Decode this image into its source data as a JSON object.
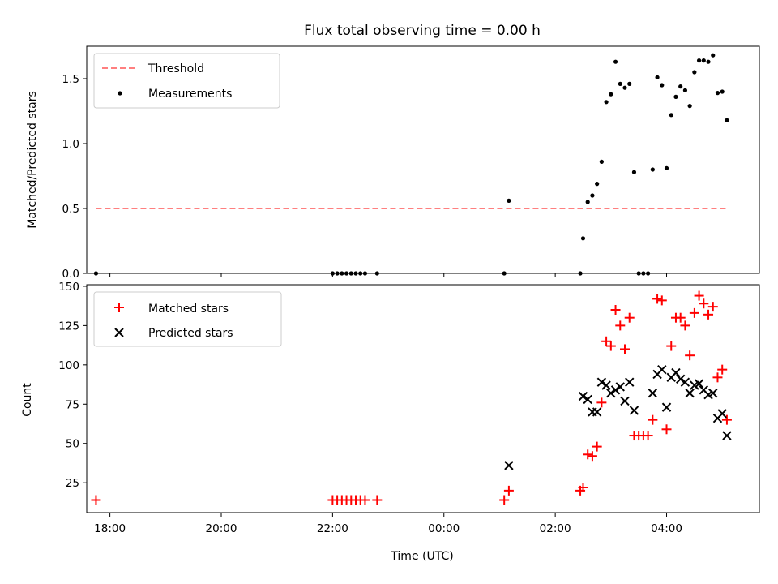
{
  "chart_data": [
    {
      "type": "scatter",
      "title": "Flux total observing time = 0.00 h",
      "xlabel": "",
      "ylabel": "Matched/Predicted stars",
      "xlim": [
        "17:35",
        "05:40"
      ],
      "ylim": [
        0,
        1.75
      ],
      "yticks": [
        0.0,
        0.5,
        1.0,
        1.5
      ],
      "yticklabels": [
        "0.0",
        "0.5",
        "1.0",
        "1.5"
      ],
      "legend": "top-left",
      "series": [
        {
          "name": "Threshold",
          "kind": "dashed-line",
          "color": "#ff7f7f",
          "points": [
            [
              "17:45",
              0.5
            ],
            [
              "05:05",
              0.5
            ]
          ]
        },
        {
          "name": "Measurements",
          "kind": "dots",
          "color": "#000000",
          "points": [
            [
              "17:45",
              0.0
            ],
            [
              "22:00",
              0.0
            ],
            [
              "22:05",
              0.0
            ],
            [
              "22:10",
              0.0
            ],
            [
              "22:15",
              0.0
            ],
            [
              "22:20",
              0.0
            ],
            [
              "22:25",
              0.0
            ],
            [
              "22:30",
              0.0
            ],
            [
              "22:35",
              0.0
            ],
            [
              "22:48",
              0.0
            ],
            [
              "01:05",
              0.0
            ],
            [
              "01:10",
              0.56
            ],
            [
              "02:27",
              0.0
            ],
            [
              "02:30",
              0.27
            ],
            [
              "02:35",
              0.55
            ],
            [
              "02:40",
              0.6
            ],
            [
              "02:45",
              0.69
            ],
            [
              "02:50",
              0.86
            ],
            [
              "02:55",
              1.32
            ],
            [
              "03:00",
              1.38
            ],
            [
              "03:05",
              1.63
            ],
            [
              "03:10",
              1.46
            ],
            [
              "03:15",
              1.43
            ],
            [
              "03:20",
              1.46
            ],
            [
              "03:25",
              0.78
            ],
            [
              "03:30",
              0.0
            ],
            [
              "03:35",
              0.0
            ],
            [
              "03:40",
              0.0
            ],
            [
              "03:45",
              0.8
            ],
            [
              "03:50",
              1.51
            ],
            [
              "03:55",
              1.45
            ],
            [
              "04:00",
              0.81
            ],
            [
              "04:05",
              1.22
            ],
            [
              "04:10",
              1.36
            ],
            [
              "04:15",
              1.44
            ],
            [
              "04:20",
              1.41
            ],
            [
              "04:25",
              1.29
            ],
            [
              "04:30",
              1.55
            ],
            [
              "04:35",
              1.64
            ],
            [
              "04:40",
              1.64
            ],
            [
              "04:45",
              1.63
            ],
            [
              "04:50",
              1.68
            ],
            [
              "04:55",
              1.39
            ],
            [
              "05:00",
              1.4
            ],
            [
              "05:05",
              1.18
            ]
          ]
        }
      ]
    },
    {
      "type": "scatter",
      "title": "",
      "xlabel": "Time (UTC)",
      "ylabel": "Count",
      "xlim": [
        "17:35",
        "05:40"
      ],
      "ylim": [
        6,
        151
      ],
      "xticks": [
        "18:00",
        "20:00",
        "22:00",
        "00:00",
        "02:00",
        "04:00"
      ],
      "yticks": [
        25,
        50,
        75,
        100,
        125,
        150
      ],
      "legend": "top-left",
      "series": [
        {
          "name": "Matched stars",
          "marker": "+",
          "color": "#ff0000",
          "points": [
            [
              "17:45",
              14
            ],
            [
              "22:00",
              14
            ],
            [
              "22:05",
              14
            ],
            [
              "22:10",
              14
            ],
            [
              "22:15",
              14
            ],
            [
              "22:20",
              14
            ],
            [
              "22:25",
              14
            ],
            [
              "22:30",
              14
            ],
            [
              "22:35",
              14
            ],
            [
              "22:48",
              14
            ],
            [
              "01:05",
              14
            ],
            [
              "01:10",
              20
            ],
            [
              "02:27",
              20
            ],
            [
              "02:30",
              22
            ],
            [
              "02:35",
              43
            ],
            [
              "02:40",
              42
            ],
            [
              "02:45",
              48
            ],
            [
              "02:50",
              76
            ],
            [
              "02:55",
              115
            ],
            [
              "03:00",
              112
            ],
            [
              "03:05",
              135
            ],
            [
              "03:10",
              125
            ],
            [
              "03:15",
              110
            ],
            [
              "03:20",
              130
            ],
            [
              "03:25",
              55
            ],
            [
              "03:30",
              55
            ],
            [
              "03:35",
              55
            ],
            [
              "03:40",
              55
            ],
            [
              "03:45",
              65
            ],
            [
              "03:50",
              142
            ],
            [
              "03:55",
              141
            ],
            [
              "04:00",
              59
            ],
            [
              "04:05",
              112
            ],
            [
              "04:10",
              130
            ],
            [
              "04:15",
              130
            ],
            [
              "04:20",
              125
            ],
            [
              "04:25",
              106
            ],
            [
              "04:30",
              133
            ],
            [
              "04:35",
              144
            ],
            [
              "04:40",
              139
            ],
            [
              "04:45",
              132
            ],
            [
              "04:50",
              137
            ],
            [
              "04:55",
              92
            ],
            [
              "05:00",
              97
            ],
            [
              "05:05",
              65
            ]
          ]
        },
        {
          "name": "Predicted stars",
          "marker": "x",
          "color": "#000000",
          "points": [
            [
              "01:10",
              36
            ],
            [
              "02:30",
              80
            ],
            [
              "02:35",
              78
            ],
            [
              "02:40",
              70
            ],
            [
              "02:45",
              70
            ],
            [
              "02:50",
              89
            ],
            [
              "02:55",
              87
            ],
            [
              "03:00",
              82
            ],
            [
              "03:05",
              84
            ],
            [
              "03:10",
              86
            ],
            [
              "03:15",
              77
            ],
            [
              "03:20",
              89
            ],
            [
              "03:25",
              71
            ],
            [
              "03:45",
              82
            ],
            [
              "03:50",
              94
            ],
            [
              "03:55",
              97
            ],
            [
              "04:00",
              73
            ],
            [
              "04:05",
              92
            ],
            [
              "04:10",
              95
            ],
            [
              "04:15",
              91
            ],
            [
              "04:20",
              89
            ],
            [
              "04:25",
              82
            ],
            [
              "04:30",
              87
            ],
            [
              "04:35",
              88
            ],
            [
              "04:40",
              84
            ],
            [
              "04:45",
              81
            ],
            [
              "04:50",
              82
            ],
            [
              "04:55",
              66
            ],
            [
              "05:00",
              69
            ],
            [
              "05:05",
              55
            ]
          ]
        }
      ]
    }
  ]
}
